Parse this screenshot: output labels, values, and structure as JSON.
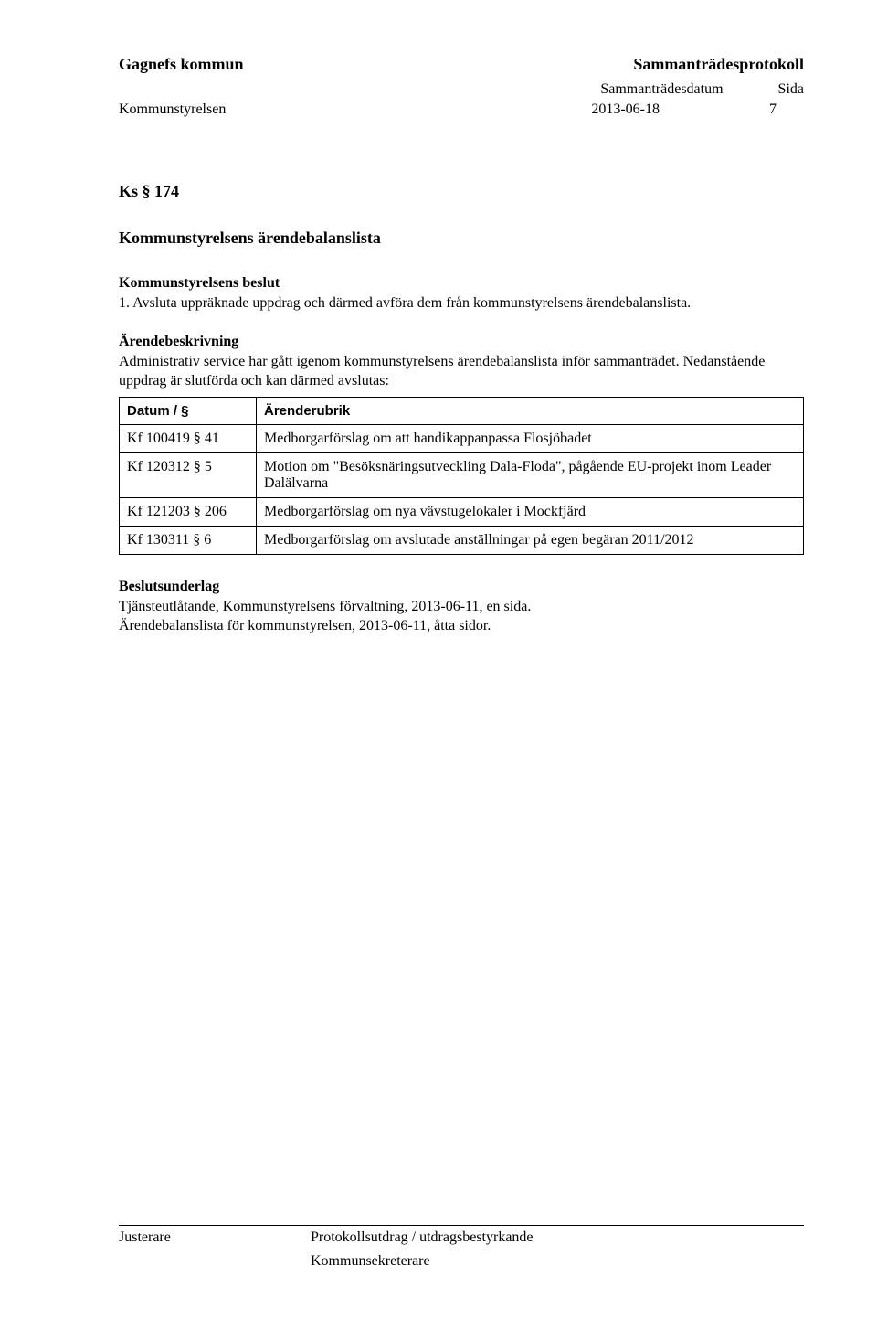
{
  "header": {
    "org": "Gagnefs kommun",
    "doc_type": "Sammanträdesprotokoll",
    "body": "Kommunstyrelsen",
    "date_label": "Sammanträdesdatum",
    "page_label": "Sida",
    "date": "2013-06-18",
    "page": "7"
  },
  "ks_number": "Ks § 174",
  "title": "Kommunstyrelsens ärendebalanslista",
  "decision_heading": "Kommunstyrelsens beslut",
  "decision_text": "1.  Avsluta uppräknade uppdrag och därmed avföra dem från kommunstyrelsens ärendebalanslista.",
  "desc_heading": "Ärendebeskrivning",
  "desc_text": "Administrativ service har gått igenom kommunstyrelsens ärendebalanslista inför sammanträdet. Nedanstående uppdrag är slutförda och kan därmed avslutas:",
  "table": {
    "columns": [
      "Datum / §",
      "Ärenderubrik"
    ],
    "rows": [
      [
        "Kf 100419 § 41",
        "Medborgarförslag om att handikappanpassa Flosjöbadet"
      ],
      [
        "Kf 120312 § 5",
        "Motion om \"Besöksnäringsutveckling Dala-Floda\", pågående EU-projekt inom Leader Dalälvarna"
      ],
      [
        "Kf 121203 § 206",
        "Medborgarförslag om nya vävstugelokaler i Mockfjärd"
      ],
      [
        "Kf 130311 § 6",
        "Medborgarförslag om avslutade anställningar på egen begäran 2011/2012"
      ]
    ]
  },
  "basis_heading": "Beslutsunderlag",
  "basis_line1": "Tjänsteutlåtande, Kommunstyrelsens förvaltning, 2013-06-11, en sida.",
  "basis_line2": "Ärendebalanslista för kommunstyrelsen, 2013-06-11, åtta sidor.",
  "footer": {
    "justerare": "Justerare",
    "protokoll": "Protokollsutdrag / utdragsbestyrkande",
    "sekreterare": "Kommunsekreterare"
  }
}
